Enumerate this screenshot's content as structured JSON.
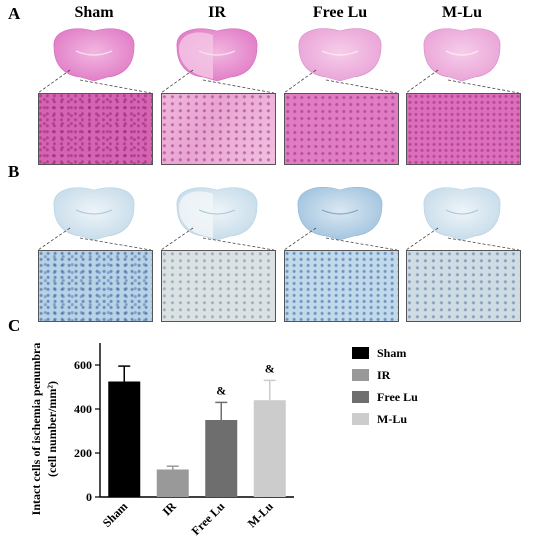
{
  "panels": [
    {
      "letter": "A"
    },
    {
      "letter": "B"
    },
    {
      "letter": "C"
    }
  ],
  "groups": [
    "Sham",
    "IR",
    "Free Lu",
    "M-Lu"
  ],
  "colors": {
    "sham": "#000000",
    "ir": "#999999",
    "free_lu": "#6e6e6e",
    "m_lu": "#cccccc",
    "he_stain": "#e08ccb",
    "nissl_stain": "#bcd6e8"
  },
  "chart_data": {
    "type": "bar",
    "categories": [
      "Sham",
      "IR",
      "Free Lu",
      "M-Lu"
    ],
    "values": [
      525,
      125,
      350,
      440
    ],
    "errors": [
      70,
      15,
      80,
      90
    ],
    "annotations": [
      "",
      "",
      "&",
      "&"
    ],
    "ylabel_line1": "Intact cells of ischemia penumbra",
    "ylabel_line2": "(cell number/mm²)",
    "yticks": [
      0,
      200,
      400,
      600
    ],
    "ylim": [
      0,
      700
    ],
    "legend": [
      "Sham",
      "IR",
      "Free Lu",
      "M-Lu"
    ],
    "legend_position": "right",
    "grid": false
  }
}
